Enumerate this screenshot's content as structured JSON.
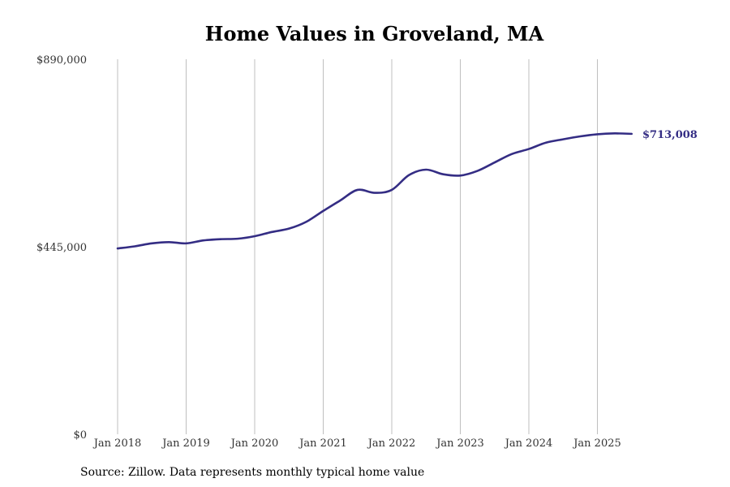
{
  "chart_data": {
    "type": "line",
    "title": "Home Values in Groveland, MA",
    "xlabel": "",
    "ylabel": "",
    "ylim": [
      0,
      890000
    ],
    "xlim": [
      "2018-01",
      "2025-07"
    ],
    "y_ticks": [
      "$0",
      "$445,000",
      "$890,000"
    ],
    "y_tick_values": [
      0,
      445000,
      890000
    ],
    "x_ticks": [
      "Jan 2018",
      "Jan 2019",
      "Jan 2020",
      "Jan 2021",
      "Jan 2022",
      "Jan 2023",
      "Jan 2024",
      "Jan 2025"
    ],
    "grid": "vertical",
    "legend": "none",
    "line_color": "#342D84",
    "grid_color": "#BFBFBF",
    "end_label": "$713,008",
    "series": [
      {
        "x": [
          "2018-01",
          "2018-04",
          "2018-07",
          "2018-10",
          "2019-01",
          "2019-04",
          "2019-07",
          "2019-10",
          "2020-01",
          "2020-04",
          "2020-07",
          "2020-10",
          "2021-01",
          "2021-04",
          "2021-07",
          "2021-10",
          "2022-01",
          "2022-04",
          "2022-07",
          "2022-10",
          "2023-01",
          "2023-04",
          "2023-07",
          "2023-10",
          "2024-01",
          "2024-04",
          "2024-07",
          "2024-10",
          "2025-01",
          "2025-04",
          "2025-07"
        ],
        "values": [
          441000,
          446000,
          453000,
          456000,
          453000,
          460000,
          463000,
          464000,
          470000,
          480000,
          488000,
          504000,
          530000,
          555000,
          580000,
          573000,
          580000,
          615000,
          628000,
          617000,
          614000,
          625000,
          645000,
          665000,
          677000,
          692000,
          700000,
          707000,
          712000,
          714000,
          713008
        ]
      }
    ]
  },
  "source": "Source: Zillow. Data represents monthly typical home value"
}
